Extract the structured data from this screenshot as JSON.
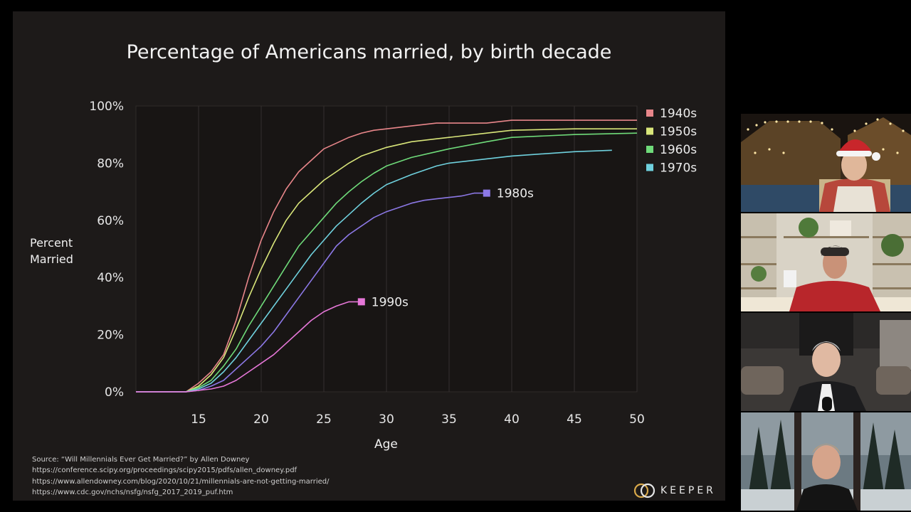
{
  "slide": {
    "source_lines": [
      "Source: “Will Millennials Ever Get Married?” by Allen Downey",
      "https://conference.scipy.org/proceedings/scipy2015/pdfs/allen_downey.pdf",
      "https://www.allendowney.com/blog/2020/10/21/millennials-are-not-getting-married/",
      "https://www.cdc.gov/nchs/nsfg/nsfg_2017_2019_puf.htm"
    ],
    "brand": "KEEPER"
  },
  "participants": [
    {
      "icon": "video-tile-participant-1"
    },
    {
      "icon": "video-tile-participant-2"
    },
    {
      "icon": "video-tile-participant-3"
    },
    {
      "icon": "video-tile-participant-4"
    }
  ],
  "chart_data": {
    "type": "line",
    "title": "Percentage of Americans married, by birth decade",
    "xlabel": "Age",
    "ylabel": "Percent Married",
    "xlim": [
      10,
      50
    ],
    "ylim": [
      0,
      100
    ],
    "x_ticks": [
      "15",
      "20",
      "25",
      "30",
      "35",
      "40",
      "45",
      "50"
    ],
    "y_ticks": [
      "0%",
      "20%",
      "40%",
      "60%",
      "80%",
      "100%"
    ],
    "grid": "vertical",
    "legend": "top-right",
    "series": [
      {
        "name": "1940s",
        "color": "#e8868a",
        "x": [
          10,
          14,
          15,
          16,
          17,
          18,
          19,
          20,
          21,
          22,
          23,
          24,
          25,
          26,
          27,
          28,
          29,
          30,
          32,
          34,
          35,
          38,
          40,
          45,
          50
        ],
        "y": [
          0,
          0,
          3,
          7,
          13,
          25,
          40,
          53,
          63,
          71,
          77,
          81,
          85,
          87,
          89,
          90.5,
          91.5,
          92,
          93,
          94,
          94,
          94,
          95,
          95,
          95
        ]
      },
      {
        "name": "1950s",
        "color": "#d9e67a",
        "x": [
          10,
          14,
          15,
          16,
          17,
          18,
          19,
          20,
          21,
          22,
          23,
          24,
          25,
          26,
          27,
          28,
          29,
          30,
          32,
          34,
          35,
          38,
          40,
          45,
          50
        ],
        "y": [
          0,
          0,
          2,
          6,
          12,
          22,
          33,
          43,
          52,
          60,
          66,
          70,
          74,
          77,
          80,
          82.5,
          84,
          85.5,
          87.5,
          88.5,
          89,
          90.5,
          91.5,
          92,
          92
        ]
      },
      {
        "name": "1960s",
        "color": "#6fdb7a",
        "x": [
          10,
          14,
          15,
          16,
          17,
          18,
          19,
          20,
          21,
          22,
          23,
          24,
          25,
          26,
          27,
          28,
          29,
          30,
          32,
          34,
          35,
          38,
          40,
          45,
          50
        ],
        "y": [
          0,
          0,
          1.5,
          4,
          9,
          15,
          23,
          30,
          37,
          44,
          51,
          56,
          61,
          66,
          70,
          73.5,
          76.5,
          79,
          82,
          84,
          85,
          87.5,
          89,
          90,
          90.5
        ]
      },
      {
        "name": "1970s",
        "color": "#6fd1de",
        "x": [
          10,
          14,
          15,
          16,
          17,
          18,
          19,
          20,
          21,
          22,
          23,
          24,
          25,
          26,
          27,
          28,
          29,
          30,
          32,
          34,
          35,
          38,
          40,
          45,
          48
        ],
        "y": [
          0,
          0,
          1,
          3,
          7,
          12,
          18,
          24,
          30,
          36,
          42,
          48,
          53,
          58,
          62,
          66,
          69.5,
          72.5,
          76,
          79,
          80,
          81.5,
          82.5,
          84,
          84.5
        ]
      },
      {
        "name": "1980s",
        "color": "#8c78e6",
        "x": [
          10,
          14,
          15,
          16,
          17,
          18,
          19,
          20,
          21,
          22,
          23,
          24,
          25,
          26,
          27,
          28,
          29,
          30,
          31,
          32,
          33,
          34,
          35,
          36,
          37,
          38
        ],
        "y": [
          0,
          0,
          0.5,
          2,
          4,
          8,
          12,
          16,
          21,
          27,
          33,
          39,
          45,
          51,
          55,
          58,
          61,
          63,
          64.5,
          66,
          67,
          67.5,
          68,
          68.5,
          69.5,
          69.5
        ]
      },
      {
        "name": "1990s",
        "color": "#e677d8",
        "x": [
          10,
          14,
          15,
          16,
          17,
          18,
          19,
          20,
          21,
          22,
          23,
          24,
          25,
          26,
          27,
          28
        ],
        "y": [
          0,
          0,
          0.5,
          1,
          2,
          4,
          7,
          10,
          13,
          17,
          21,
          25,
          28,
          30,
          31.5,
          31.5
        ]
      }
    ]
  }
}
